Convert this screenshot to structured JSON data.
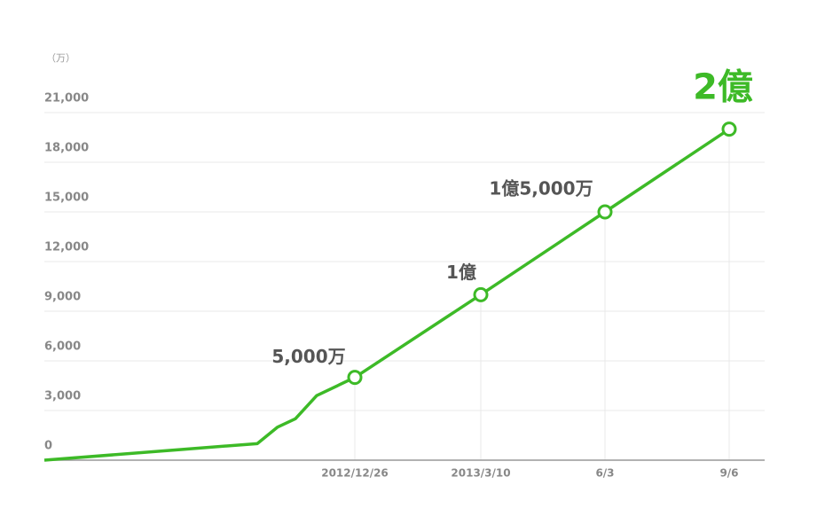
{
  "chart_data": {
    "type": "line",
    "unit_label": "（万）",
    "categories": [
      null,
      null,
      null,
      null,
      null,
      "2012/12/26",
      "2013/3/10",
      "6/3",
      "9/6"
    ],
    "series": [
      {
        "color": "#3dba27",
        "values": [
          0,
          1000,
          2000,
          2500,
          3900,
          5000,
          10000,
          15000,
          20000
        ],
        "value_labels": [
          null,
          null,
          null,
          null,
          null,
          "5,000万",
          "1億",
          "1億5,000万",
          "2億"
        ]
      }
    ],
    "ylim": [
      0,
      21000
    ],
    "yticks": [
      0,
      {
        "value": 3000,
        "label": "3,000"
      },
      {
        "value": 6000,
        "label": "6,000"
      },
      {
        "value": 9000,
        "label": "9,000"
      },
      {
        "value": 12000,
        "label": "12,000"
      },
      {
        "value": 15000,
        "label": "15,000"
      },
      {
        "value": 18000,
        "label": "18,000"
      },
      {
        "value": 21000,
        "label": "21,000"
      }
    ],
    "grid": true
  }
}
